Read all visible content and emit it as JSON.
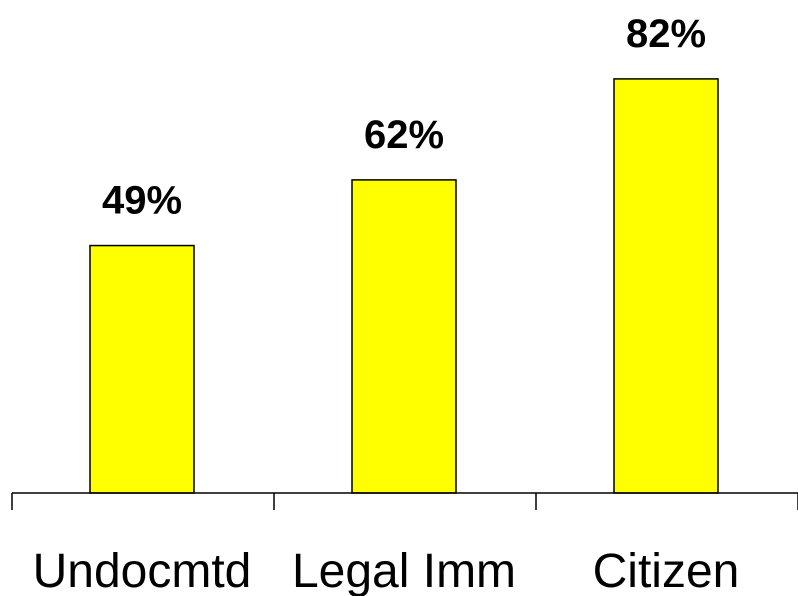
{
  "chart_data": {
    "type": "bar",
    "categories": [
      "Undocmtd",
      "Legal Imm",
      "Citizen"
    ],
    "values": [
      49,
      62,
      82
    ],
    "value_labels": [
      "49%",
      "62%",
      "82%"
    ],
    "ylim": [
      0,
      100
    ],
    "title": "",
    "xlabel": "",
    "ylabel": "",
    "grid": false,
    "legend": "none",
    "bar_color": "#ffff00",
    "edge_color": "#000000"
  }
}
